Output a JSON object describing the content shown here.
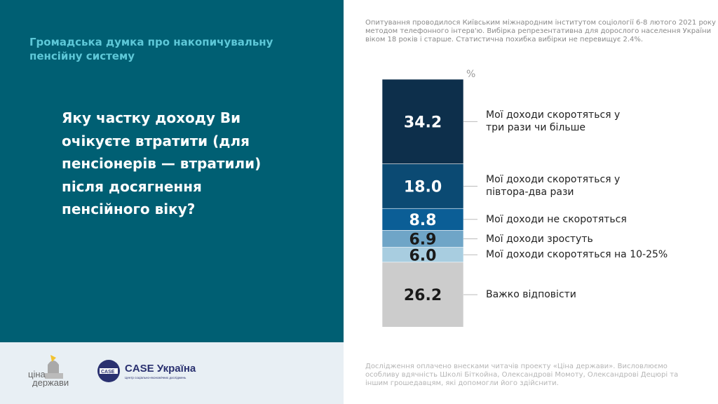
{
  "header": {
    "subtitle": "Громадська думка про накопичувальну пенсійну систему"
  },
  "question": "Яку частку доходу Ви очікуєте втратити (для пенсіонерів — втратили) після досягнення пенсійного віку?",
  "note": "Опитування проводилося Київським міжнародним інститутом соціології 6-8 лютого 2021 року методом телефонного інтерв'ю. Вибірка репрезентативна для дорослого населення України віком 18 років і старше. Статистична похибка вибірки не перевищує 2.4%.",
  "credits": "Дослідження оплачено внесками читачів проекту «Ціна держави». Висловлюємо особливу вдячність Школі Біткойна, Олександрові Момоту, Олександрові Децюрі та іншим грошедавцям, які допомогли його здійснити.",
  "logos": {
    "cina": "ціна держави",
    "case": "CASE Україна",
    "case_sub": "Центр соціально-економічних досліджень"
  },
  "chart_data": {
    "type": "bar",
    "stacked": true,
    "unit_label": "%",
    "ylim": [
      0,
      100
    ],
    "segments": [
      {
        "label": "Мої доходи скоротяться у три рази чи більше",
        "value": 34.2,
        "color": "#0d2f4b"
      },
      {
        "label": "Мої доходи скоротяться у півтора-два рази",
        "value": 18.0,
        "color": "#0b4a73"
      },
      {
        "label": "Мої доходи не скоротяться",
        "value": 8.8,
        "color": "#0b5e96"
      },
      {
        "label": "Мої доходи зростуть",
        "value": 6.9,
        "color": "#6fa5c7"
      },
      {
        "label": "Мої доходи скоротяться на 10-25%",
        "value": 6.0,
        "color": "#a8cde0"
      },
      {
        "label": "Важко відповісти",
        "value": 26.2,
        "color": "#cccccc"
      }
    ]
  }
}
